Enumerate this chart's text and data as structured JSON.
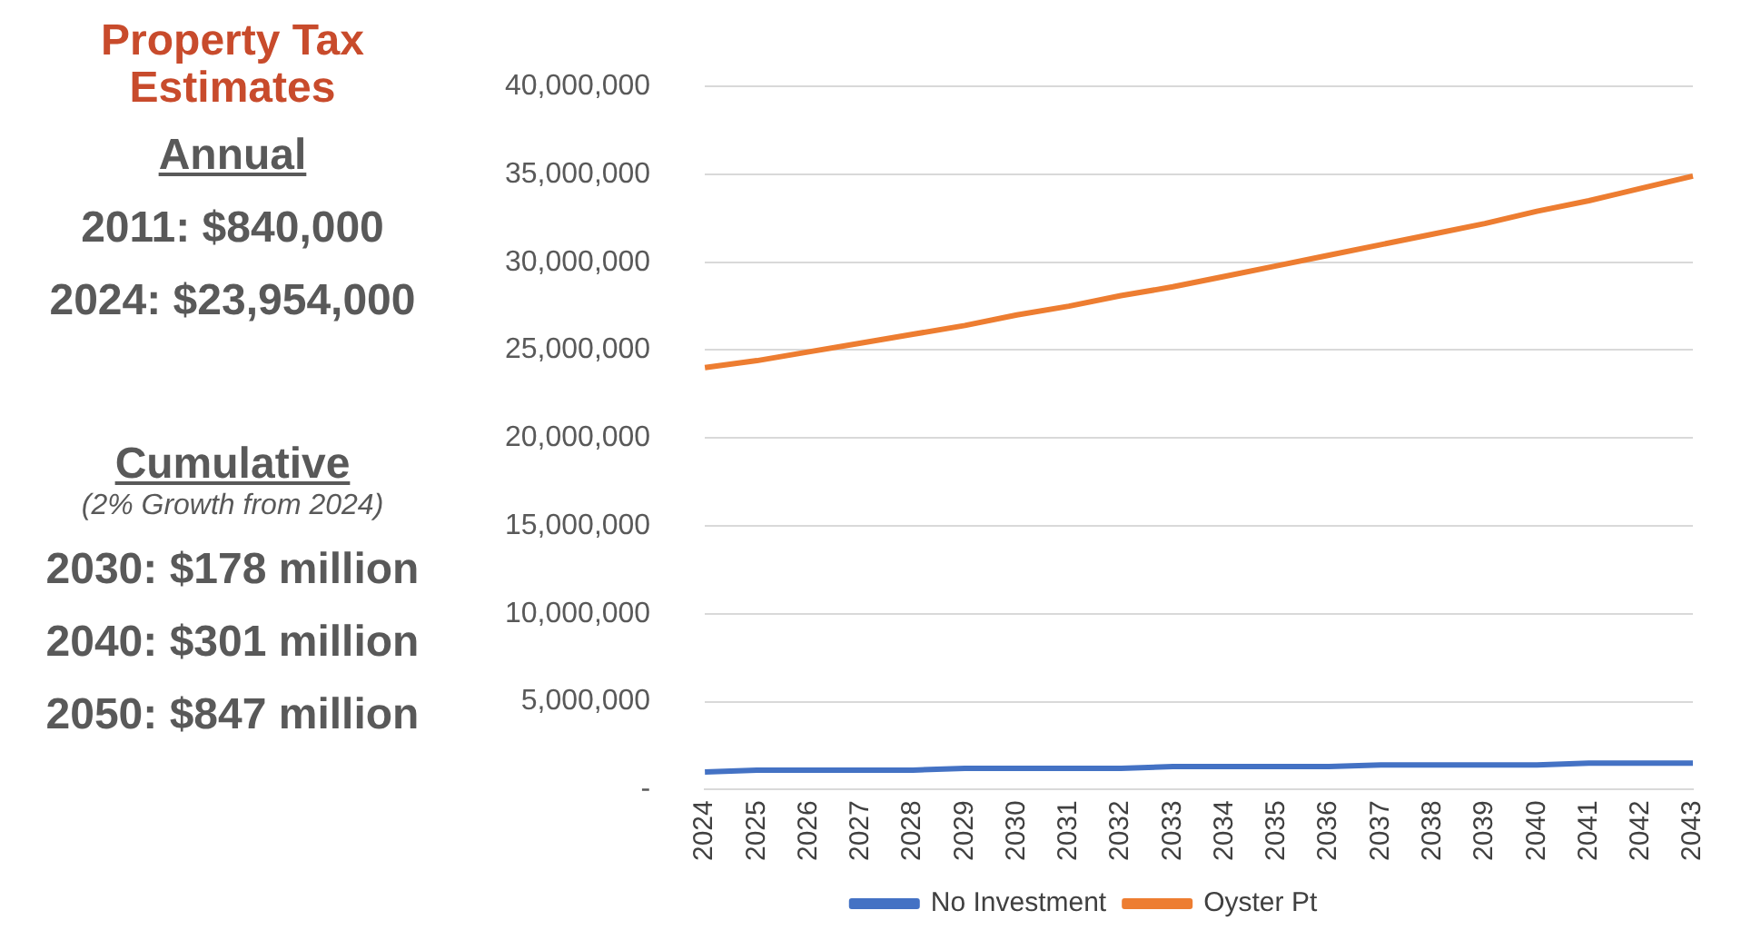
{
  "chart_data": {
    "type": "line",
    "title": "Property Tax Estimates",
    "annotations": [
      "Annual",
      "2011: $840,000",
      "2024: $23,954,000",
      "Cumulative",
      "(2% Growth from 2024)",
      "2030: $178 million",
      "2040: $301 million",
      "2050: $847 million"
    ],
    "categories": [
      "2024",
      "2025",
      "2026",
      "2027",
      "2028",
      "2029",
      "2030",
      "2031",
      "2032",
      "2033",
      "2034",
      "2035",
      "2036",
      "2037",
      "2038",
      "2039",
      "2040",
      "2041",
      "2042",
      "2043"
    ],
    "series": [
      {
        "name": "No Investment",
        "color": "#4472c4",
        "values": [
          1000000,
          1100000,
          1100000,
          1100000,
          1100000,
          1200000,
          1200000,
          1200000,
          1200000,
          1300000,
          1300000,
          1300000,
          1300000,
          1400000,
          1400000,
          1400000,
          1400000,
          1500000,
          1500000,
          1500000
        ]
      },
      {
        "name": "Oyster Pt",
        "color": "#ed7d31",
        "values": [
          24000000,
          24400000,
          24900000,
          25400000,
          25900000,
          26400000,
          27000000,
          27500000,
          28100000,
          28600000,
          29200000,
          29800000,
          30400000,
          31000000,
          31600000,
          32200000,
          32900000,
          33500000,
          34200000,
          34900000
        ]
      }
    ],
    "ylim": [
      0,
      40000000
    ],
    "yticks": [
      {
        "value": 0,
        "label": "-"
      },
      {
        "value": 5000000,
        "label": "5,000,000"
      },
      {
        "value": 10000000,
        "label": "10,000,000"
      },
      {
        "value": 15000000,
        "label": "15,000,000"
      },
      {
        "value": 20000000,
        "label": "20,000,000"
      },
      {
        "value": 25000000,
        "label": "25,000,000"
      },
      {
        "value": 30000000,
        "label": "30,000,000"
      },
      {
        "value": 35000000,
        "label": "35,000,000"
      },
      {
        "value": 40000000,
        "label": "40,000,000"
      }
    ],
    "grid": "y",
    "legend": "bottom",
    "marker": "none",
    "line_style": "solid"
  }
}
